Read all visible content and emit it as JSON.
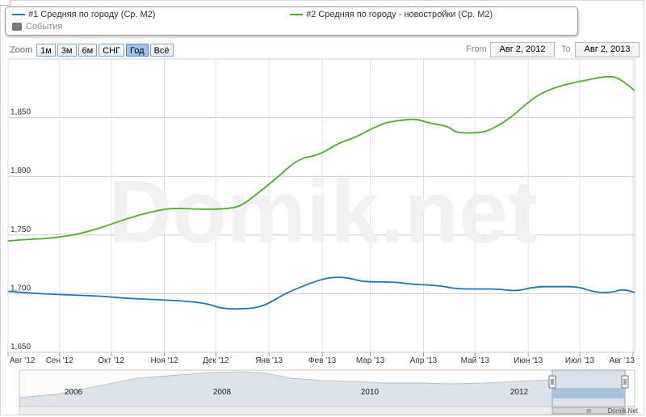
{
  "legend": {
    "series1_label": "#1 Средняя по городу (Ср. М2)",
    "series2_label": "#2 Средняя по городу - новостройки (Ср. М2)",
    "events_label": "События"
  },
  "zoom": {
    "label": "Zoom",
    "buttons": [
      "1м",
      "3м",
      "6м",
      "СНГ",
      "Год",
      "Всё"
    ],
    "active": "Год"
  },
  "range": {
    "from_label": "From",
    "from_value": "Авг 2, 2012",
    "to_label": "To",
    "to_value": "Авг 2, 2013"
  },
  "watermark": "Domik.net",
  "credit": "Domik.Net",
  "navigator": {
    "years": [
      "2006",
      "2008",
      "2010",
      "2012"
    ],
    "handle_grip": "III"
  },
  "colors": {
    "series1": "#1f77b4",
    "series2": "#4caf2a",
    "grid": "#cccccc",
    "nav_fill": "#dde3ea",
    "nav_window": "#a9c1dd"
  },
  "chart_data": {
    "type": "line",
    "title": "",
    "xlabel": "",
    "ylabel": "",
    "ylim": [
      1650,
      1900
    ],
    "yticks": [
      "1,650",
      "1,700",
      "1,750",
      "1,800",
      "1,850"
    ],
    "ytick_values": [
      1650,
      1700,
      1750,
      1800,
      1850
    ],
    "x_tick_labels": [
      "Авг '12",
      "Сен '12",
      "Окт '12",
      "Ноя '12",
      "Дек '12",
      "Янв '13",
      "Фев '13",
      "Мар '13",
      "Апр '13",
      "Май '13",
      "Июн '13",
      "Июл '13",
      "Авг '13"
    ],
    "x_range": [
      "2012-08-02",
      "2013-08-02"
    ],
    "grid": true,
    "legend_position": "top",
    "series": [
      {
        "name": "#1 Средняя по городу (Ср. М2)",
        "points": [
          [
            "2012-08-02",
            1702
          ],
          [
            "2012-08-20",
            1700
          ],
          [
            "2012-09-05",
            1699
          ],
          [
            "2012-09-25",
            1698
          ],
          [
            "2012-10-10",
            1696
          ],
          [
            "2012-10-25",
            1695
          ],
          [
            "2012-11-10",
            1694
          ],
          [
            "2012-11-25",
            1692
          ],
          [
            "2012-12-05",
            1687
          ],
          [
            "2012-12-20",
            1687
          ],
          [
            "2012-12-30",
            1690
          ],
          [
            "2013-01-10",
            1700
          ],
          [
            "2013-01-25",
            1709
          ],
          [
            "2013-02-05",
            1714
          ],
          [
            "2013-02-15",
            1714
          ],
          [
            "2013-02-22",
            1711
          ],
          [
            "2013-03-01",
            1710
          ],
          [
            "2013-03-15",
            1710
          ],
          [
            "2013-03-25",
            1708
          ],
          [
            "2013-04-10",
            1707
          ],
          [
            "2013-04-20",
            1704
          ],
          [
            "2013-05-05",
            1704
          ],
          [
            "2013-05-15",
            1704
          ],
          [
            "2013-05-25",
            1702
          ],
          [
            "2013-06-05",
            1706
          ],
          [
            "2013-06-20",
            1706
          ],
          [
            "2013-06-30",
            1706
          ],
          [
            "2013-07-10",
            1701
          ],
          [
            "2013-07-20",
            1701
          ],
          [
            "2013-07-26",
            1704
          ],
          [
            "2013-08-02",
            1701
          ]
        ]
      },
      {
        "name": "#2 Средняя по городу - новостройки (Ср. М2)",
        "points": [
          [
            "2012-08-02",
            1745
          ],
          [
            "2012-08-10",
            1746
          ],
          [
            "2012-08-25",
            1747
          ],
          [
            "2012-09-10",
            1750
          ],
          [
            "2012-09-25",
            1756
          ],
          [
            "2012-10-10",
            1764
          ],
          [
            "2012-10-25",
            1770
          ],
          [
            "2012-11-05",
            1773
          ],
          [
            "2012-11-20",
            1772
          ],
          [
            "2012-12-05",
            1772
          ],
          [
            "2012-12-15",
            1774
          ],
          [
            "2012-12-25",
            1785
          ],
          [
            "2013-01-05",
            1798
          ],
          [
            "2013-01-18",
            1815
          ],
          [
            "2013-01-30",
            1818
          ],
          [
            "2013-02-10",
            1828
          ],
          [
            "2013-02-20",
            1833
          ],
          [
            "2013-03-01",
            1840
          ],
          [
            "2013-03-10",
            1846
          ],
          [
            "2013-03-20",
            1848
          ],
          [
            "2013-03-28",
            1849
          ],
          [
            "2013-04-05",
            1845
          ],
          [
            "2013-04-15",
            1843
          ],
          [
            "2013-04-20",
            1837
          ],
          [
            "2013-04-30",
            1837
          ],
          [
            "2013-05-08",
            1838
          ],
          [
            "2013-05-20",
            1848
          ],
          [
            "2013-05-28",
            1858
          ],
          [
            "2013-06-05",
            1868
          ],
          [
            "2013-06-15",
            1875
          ],
          [
            "2013-06-25",
            1879
          ],
          [
            "2013-07-05",
            1882
          ],
          [
            "2013-07-15",
            1885
          ],
          [
            "2013-07-22",
            1885
          ],
          [
            "2013-07-28",
            1879
          ],
          [
            "2013-08-02",
            1873
          ]
        ]
      }
    ]
  }
}
